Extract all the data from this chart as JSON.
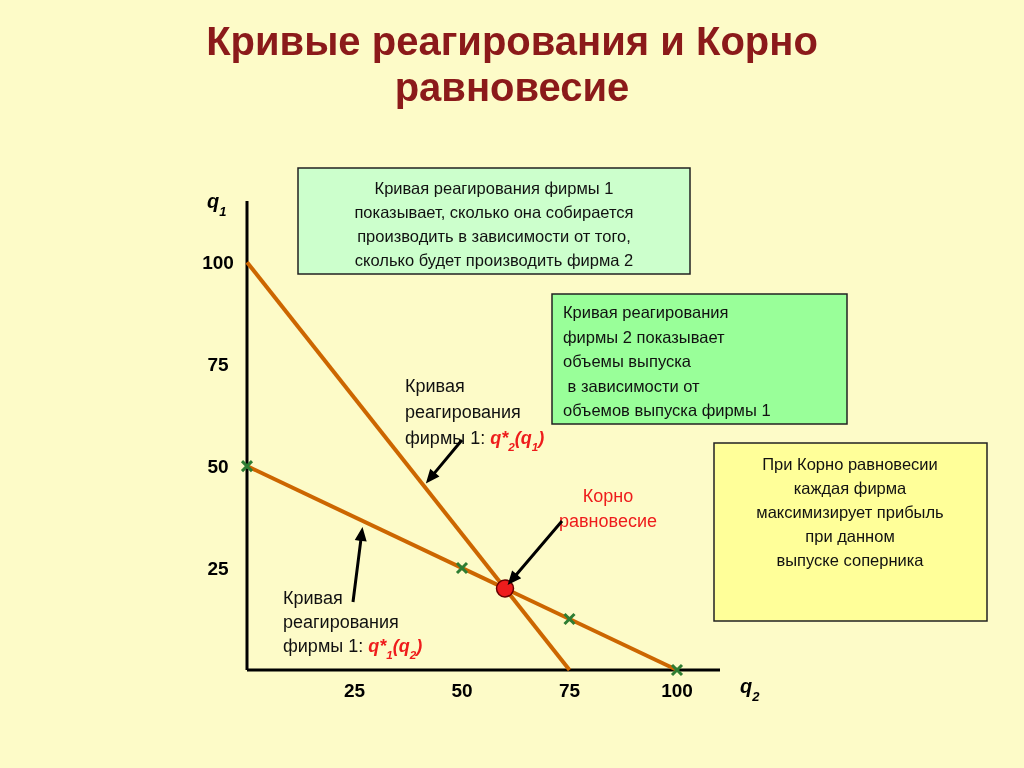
{
  "chart_data": {
    "type": "line",
    "title": "Кривые реагирования и Корно\nравновесие",
    "xlabel": "q$_{2}$",
    "ylabel": "q$_{1}$",
    "xlim": [
      0,
      110
    ],
    "ylim": [
      0,
      115
    ],
    "xticks": [
      25,
      50,
      75,
      100
    ],
    "yticks": [
      25,
      50,
      75,
      100
    ],
    "grid": false,
    "series": [
      {
        "type": "line",
        "color": "#cc6600",
        "x": [
          0,
          75
        ],
        "values": [
          100,
          0
        ]
      },
      {
        "type": "line",
        "color": "#cc6600",
        "x": [
          0,
          100
        ],
        "values": [
          50,
          0
        ]
      },
      {
        "type": "scatter",
        "marker": "cross",
        "color": "#2e7d32",
        "x": [
          0,
          50,
          75,
          100
        ],
        "values": [
          50,
          25,
          12.5,
          0
        ]
      },
      {
        "type": "scatter",
        "marker": "circle",
        "color": "#ee1c1c",
        "x": [
          60
        ],
        "values": [
          20
        ]
      }
    ],
    "annotations": [
      "Кривая реагирования фирмы 1\nпоказывает, сколько она собирается\nпроизводить в зависимости от того,\nсколько будет производить фирма 2",
      "Кривая реагирования\nфирмы 2 показывает\nобъемы выпуска\n в зависимости от\nобъемов выпуска фирмы 1",
      "При Корно равновесии\nкаждая фирма\nмаксимизирует прибыль\nпри данном\nвыпуске соперника",
      {
        "text": "Кривая\nреагирования\nфирмы 1: q*$_{2}$(q$_{1}$)",
        "x": 41,
        "y": 45
      },
      "Корно\nравновесие",
      "Кривая\nреагирования\nфирмы 1: q*$_{1}$(q$_{2}$)"
    ]
  }
}
